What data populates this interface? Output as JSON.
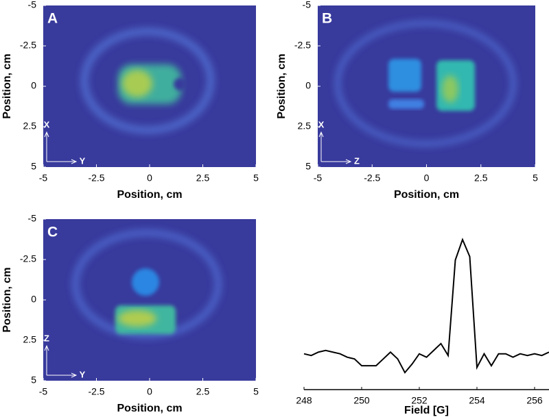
{
  "chart_data": [
    {
      "type": "image",
      "panel_label": "A",
      "axis_arrows": {
        "vertical": "X",
        "horizontal": "Y"
      },
      "xlabel": "Position, cm",
      "ylabel": "Position, cm",
      "xlim": [
        -5,
        5
      ],
      "ylim": [
        5,
        -5
      ],
      "xticks": [
        -5,
        -2.5,
        0,
        2.5,
        5
      ],
      "yticks": [
        -5,
        -2.5,
        0,
        2.5,
        5
      ]
    },
    {
      "type": "image",
      "panel_label": "B",
      "axis_arrows": {
        "vertical": "X",
        "horizontal": "Z"
      },
      "xlabel": "Position, cm",
      "ylabel": "Position, cm",
      "xlim": [
        -5,
        5
      ],
      "ylim": [
        5,
        -5
      ],
      "xticks": [
        -5,
        -2.5,
        0,
        2.5,
        5
      ],
      "yticks": [
        -5,
        -2.5,
        0,
        2.5,
        5
      ]
    },
    {
      "type": "image",
      "panel_label": "C",
      "axis_arrows": {
        "vertical": "Z",
        "horizontal": "Y"
      },
      "xlabel": "Position, cm",
      "ylabel": "Position, cm",
      "xlim": [
        -5,
        5
      ],
      "ylim": [
        5,
        -5
      ],
      "xticks": [
        -5,
        -2.5,
        0,
        2.5,
        5
      ],
      "yticks": [
        -5,
        -2.5,
        0,
        2.5,
        5
      ]
    },
    {
      "type": "line",
      "xlabel": "Field [G]",
      "color": "#000000",
      "xlim": [
        248,
        256.5
      ],
      "ylim": [
        0,
        1
      ],
      "xticks": [
        248,
        250,
        252,
        254,
        256
      ],
      "x": [
        248,
        248.25,
        248.5,
        248.75,
        249,
        249.25,
        249.5,
        249.75,
        250,
        250.25,
        250.5,
        250.75,
        251,
        251.25,
        251.5,
        251.75,
        252,
        252.25,
        252.5,
        252.75,
        253,
        253.25,
        253.5,
        253.75,
        254,
        254.25,
        254.5,
        254.75,
        255,
        255.25,
        255.5,
        255.75,
        256,
        256.25,
        256.5
      ],
      "values": [
        0.21,
        0.2,
        0.22,
        0.23,
        0.22,
        0.21,
        0.19,
        0.18,
        0.14,
        0.14,
        0.14,
        0.18,
        0.22,
        0.18,
        0.1,
        0.15,
        0.21,
        0.19,
        0.23,
        0.27,
        0.2,
        0.76,
        0.88,
        0.78,
        0.13,
        0.21,
        0.14,
        0.21,
        0.21,
        0.19,
        0.21,
        0.2,
        0.21,
        0.2,
        0.22
      ]
    }
  ]
}
